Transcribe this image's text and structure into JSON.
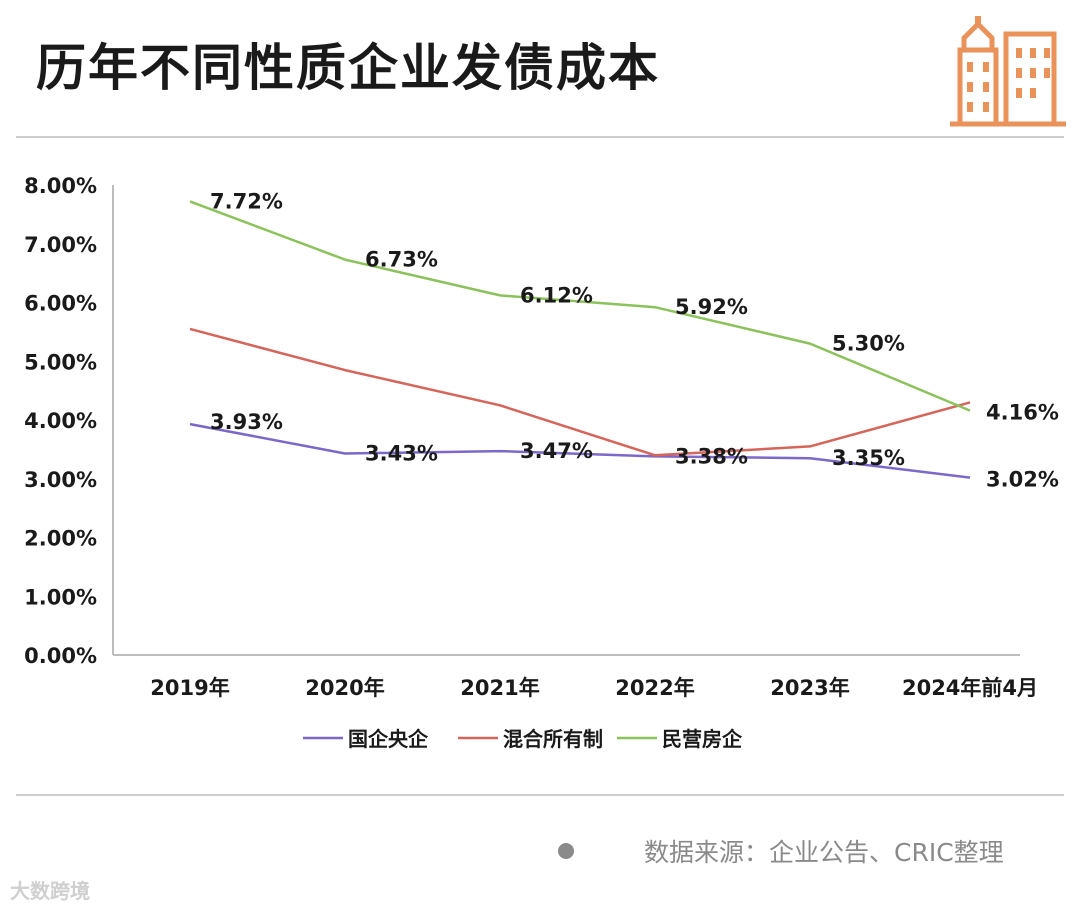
{
  "title": "历年不同性质企业发债成本",
  "source": "数据来源：企业公告、CRIC整理",
  "watermark": "大数跨境",
  "colors": {
    "central_soe": "#7b68c8",
    "mixed": "#d5655a",
    "private": "#8cc25c",
    "logo": "#e9925a"
  },
  "chart_data": {
    "type": "line",
    "categories": [
      "2019年",
      "2020年",
      "2021年",
      "2022年",
      "2023年",
      "2024年前4月"
    ],
    "y_ticks": [
      "8.00%",
      "7.00%",
      "6.00%",
      "5.00%",
      "4.00%",
      "3.00%",
      "2.00%",
      "1.00%",
      "0.00%"
    ],
    "ylim": [
      0,
      8
    ],
    "legend_position": "bottom",
    "series": [
      {
        "name": "国企央企",
        "color": "#7b68c8",
        "values": [
          3.93,
          3.43,
          3.47,
          3.38,
          3.35,
          3.02
        ],
        "labels": [
          "3.93%",
          "3.43%",
          "3.47%",
          "3.38%",
          "3.35%",
          "3.02%"
        ]
      },
      {
        "name": "混合所有制",
        "color": "#d5655a",
        "values": [
          5.55,
          4.85,
          4.25,
          3.4,
          3.55,
          4.3
        ],
        "labels": []
      },
      {
        "name": "民营房企",
        "color": "#8cc25c",
        "values": [
          7.72,
          6.73,
          6.12,
          5.92,
          5.3,
          4.16
        ],
        "labels": [
          "7.72%",
          "6.73%",
          "6.12%",
          "5.92%",
          "5.30%",
          "4.16%"
        ]
      }
    ]
  }
}
